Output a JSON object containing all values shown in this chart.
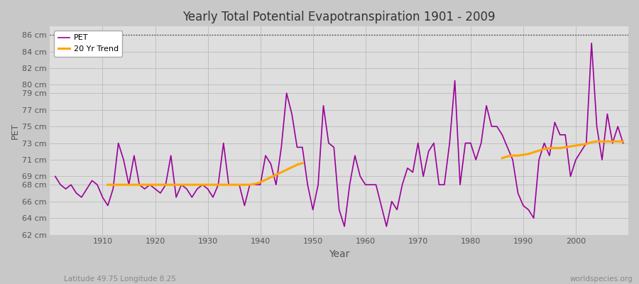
{
  "title": "Yearly Total Potential Evapotranspiration 1901 - 2009",
  "xlabel": "Year",
  "ylabel": "PET",
  "subtitle_left": "Latitude 49.75 Longitude 8.25",
  "subtitle_right": "worldspecies.org",
  "pet_color": "#990099",
  "trend_color": "#FFA500",
  "background_color": "#C8C8C8",
  "plot_bg_color": "#DEDEDE",
  "ylim": [
    62,
    87
  ],
  "xlim": [
    1900,
    2010
  ],
  "ytick_vals": [
    62,
    64,
    66,
    68,
    69,
    71,
    73,
    75,
    77,
    79,
    80,
    82,
    84,
    86
  ],
  "xtick_positions": [
    1910,
    1920,
    1930,
    1940,
    1950,
    1960,
    1970,
    1980,
    1990,
    2000
  ],
  "years": [
    1901,
    1902,
    1903,
    1904,
    1905,
    1906,
    1907,
    1908,
    1909,
    1910,
    1911,
    1912,
    1913,
    1914,
    1915,
    1916,
    1917,
    1918,
    1919,
    1920,
    1921,
    1922,
    1923,
    1924,
    1925,
    1926,
    1927,
    1928,
    1929,
    1930,
    1931,
    1932,
    1933,
    1934,
    1935,
    1936,
    1937,
    1938,
    1939,
    1940,
    1941,
    1942,
    1943,
    1944,
    1945,
    1946,
    1947,
    1948,
    1949,
    1950,
    1951,
    1952,
    1953,
    1954,
    1955,
    1956,
    1957,
    1958,
    1959,
    1960,
    1961,
    1962,
    1963,
    1964,
    1965,
    1966,
    1967,
    1968,
    1969,
    1970,
    1971,
    1972,
    1973,
    1974,
    1975,
    1976,
    1977,
    1978,
    1979,
    1980,
    1981,
    1982,
    1983,
    1984,
    1985,
    1986,
    1987,
    1988,
    1989,
    1990,
    1991,
    1992,
    1993,
    1994,
    1995,
    1996,
    1997,
    1998,
    1999,
    2000,
    2001,
    2002,
    2003,
    2004,
    2005,
    2006,
    2007,
    2008,
    2009
  ],
  "pet_values": [
    69.0,
    68.0,
    67.5,
    68.0,
    67.0,
    66.5,
    67.5,
    68.5,
    68.0,
    66.5,
    65.5,
    67.5,
    73.0,
    71.0,
    68.0,
    71.5,
    68.0,
    67.5,
    68.0,
    67.5,
    67.0,
    68.0,
    71.5,
    66.5,
    68.0,
    67.5,
    66.5,
    67.5,
    68.0,
    67.5,
    66.5,
    68.0,
    73.0,
    68.0,
    68.0,
    68.0,
    65.5,
    68.0,
    68.0,
    68.0,
    71.5,
    70.5,
    68.0,
    72.5,
    79.0,
    76.5,
    72.5,
    72.5,
    68.0,
    65.0,
    68.0,
    77.5,
    73.0,
    72.5,
    65.0,
    63.0,
    68.0,
    71.5,
    69.0,
    68.0,
    68.0,
    68.0,
    65.5,
    63.0,
    66.0,
    65.0,
    68.0,
    70.0,
    69.5,
    73.0,
    69.0,
    72.0,
    73.0,
    68.0,
    68.0,
    73.0,
    80.5,
    68.0,
    73.0,
    73.0,
    71.0,
    73.0,
    77.5,
    75.0,
    75.0,
    74.0,
    72.5,
    71.0,
    67.0,
    65.5,
    65.0,
    64.0,
    71.0,
    73.0,
    71.5,
    75.5,
    74.0,
    74.0,
    69.0,
    71.0,
    72.0,
    73.0,
    85.0,
    75.0,
    71.0,
    76.5,
    73.0,
    75.0,
    73.0
  ],
  "trend_segment1_years": [
    1911,
    1912,
    1913,
    1914,
    1915,
    1916,
    1917,
    1918,
    1919,
    1920,
    1921,
    1922,
    1923,
    1924,
    1925,
    1926,
    1927,
    1928,
    1929,
    1930,
    1931,
    1932,
    1933,
    1934,
    1935,
    1936,
    1937,
    1938,
    1939,
    1940,
    1941,
    1942,
    1943,
    1944,
    1945,
    1946,
    1947,
    1948
  ],
  "trend_segment1_vals": [
    68.0,
    68.0,
    68.0,
    68.0,
    68.0,
    68.0,
    68.0,
    68.0,
    68.0,
    68.0,
    68.0,
    68.0,
    68.0,
    68.0,
    68.0,
    68.0,
    68.0,
    68.0,
    68.0,
    68.0,
    68.0,
    68.0,
    68.0,
    68.0,
    68.0,
    68.0,
    68.0,
    68.0,
    68.1,
    68.3,
    68.6,
    68.9,
    69.2,
    69.5,
    69.8,
    70.1,
    70.4,
    70.6
  ],
  "trend_segment2_years": [
    1986,
    1987,
    1988,
    1989,
    1990,
    1991,
    1992,
    1993,
    1994,
    1995,
    1996,
    1997,
    1998,
    1999,
    2000,
    2001,
    2002,
    2003,
    2004,
    2005,
    2006,
    2007,
    2008,
    2009
  ],
  "trend_segment2_vals": [
    71.2,
    71.4,
    71.5,
    71.5,
    71.6,
    71.7,
    71.9,
    72.1,
    72.3,
    72.4,
    72.4,
    72.4,
    72.5,
    72.6,
    72.7,
    72.8,
    72.9,
    73.1,
    73.2,
    73.2,
    73.2,
    73.2,
    73.2,
    73.2
  ]
}
